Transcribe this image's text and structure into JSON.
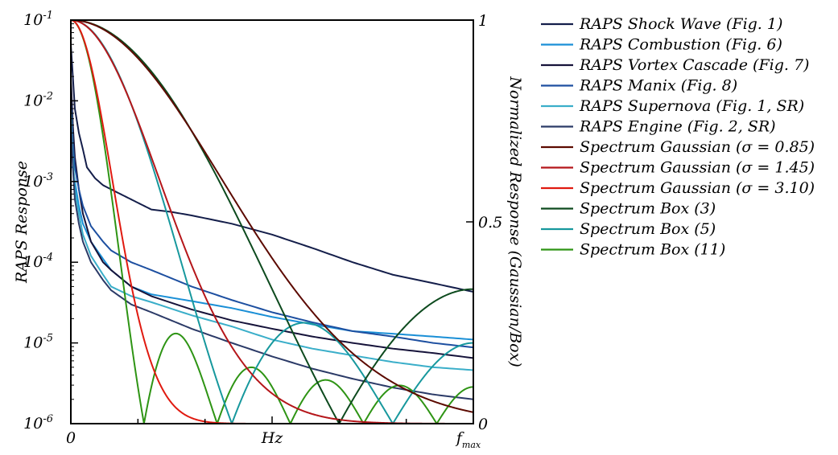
{
  "chart_data": {
    "type": "line",
    "x_axis": {
      "label": "Hz",
      "start_label": "0",
      "end_label": "f",
      "end_label_subscript": "max",
      "range": [
        0,
        1
      ]
    },
    "y_left": {
      "label": "RAPS Response",
      "scale": "log",
      "range": [
        1e-06,
        0.1
      ],
      "ticks": [
        {
          "base": "10",
          "exp": "-1",
          "value": 0.1
        },
        {
          "base": "10",
          "exp": "-2",
          "value": 0.01
        },
        {
          "base": "10",
          "exp": "-3",
          "value": 0.001
        },
        {
          "base": "10",
          "exp": "-4",
          "value": 0.0001
        },
        {
          "base": "10",
          "exp": "-5",
          "value": 1e-05
        },
        {
          "base": "10",
          "exp": "-6",
          "value": 1e-06
        }
      ]
    },
    "y_right": {
      "label": "Normalized Response (Gaussian/Box)",
      "scale": "linear",
      "range": [
        0,
        1
      ],
      "ticks": [
        {
          "label": "1",
          "value": 1
        },
        {
          "label": "0.5",
          "value": 0.5
        },
        {
          "label": "0",
          "value": 0
        }
      ]
    },
    "legend_position": "outside-right",
    "series": [
      {
        "name": "RAPS Shock Wave (Fig. 1)",
        "axis": "left",
        "color": "#141e4a",
        "x": [
          0,
          0.005,
          0.01,
          0.02,
          0.03,
          0.04,
          0.06,
          0.08,
          0.1,
          0.15,
          0.2,
          0.25,
          0.3,
          0.4,
          0.5,
          0.6,
          0.7,
          0.8,
          0.9,
          1.0
        ],
        "y": [
          0.05,
          0.02,
          0.008,
          0.004,
          0.0025,
          0.0015,
          0.0011,
          0.0009,
          0.0008,
          0.0006,
          0.00045,
          0.00042,
          0.00038,
          0.0003,
          0.00022,
          0.00015,
          0.0001,
          7e-05,
          5.5e-05,
          4.3e-05
        ]
      },
      {
        "name": "RAPS Combustion (Fig. 6)",
        "axis": "left",
        "color": "#1a8fd6",
        "x": [
          0,
          0.005,
          0.01,
          0.02,
          0.03,
          0.05,
          0.08,
          0.1,
          0.15,
          0.2,
          0.3,
          0.4,
          0.5,
          0.6,
          0.7,
          0.8,
          0.9,
          1.0
        ],
        "y": [
          0.0015,
          0.0015,
          0.001,
          0.0005,
          0.0003,
          0.00018,
          0.00011,
          8e-05,
          5e-05,
          4e-05,
          3.3e-05,
          2.7e-05,
          2.1e-05,
          1.7e-05,
          1.4e-05,
          1.3e-05,
          1.2e-05,
          1.1e-05
        ]
      },
      {
        "name": "RAPS Vortex Cascade (Fig. 7)",
        "axis": "left",
        "color": "#16133a",
        "x": [
          0,
          0.005,
          0.01,
          0.02,
          0.03,
          0.05,
          0.08,
          0.1,
          0.15,
          0.2,
          0.3,
          0.4,
          0.5,
          0.6,
          0.7,
          0.8,
          0.9,
          1.0
        ],
        "y": [
          0.02,
          0.005,
          0.002,
          0.0008,
          0.0004,
          0.00018,
          0.0001,
          8e-05,
          5e-05,
          3.8e-05,
          2.6e-05,
          1.9e-05,
          1.5e-05,
          1.2e-05,
          1e-05,
          8.5e-06,
          7.5e-06,
          6.5e-06
        ]
      },
      {
        "name": "RAPS Manix (Fig. 8)",
        "axis": "left",
        "color": "#1d4fa0",
        "x": [
          0,
          0.005,
          0.01,
          0.02,
          0.03,
          0.05,
          0.08,
          0.1,
          0.15,
          0.2,
          0.3,
          0.4,
          0.5,
          0.6,
          0.7,
          0.8,
          0.9,
          1.0
        ],
        "y": [
          0.01,
          0.003,
          0.0015,
          0.0008,
          0.0005,
          0.00028,
          0.00018,
          0.00014,
          0.0001,
          8e-05,
          5e-05,
          3.4e-05,
          2.4e-05,
          1.8e-05,
          1.4e-05,
          1.2e-05,
          1e-05,
          8.8e-06
        ]
      },
      {
        "name": "RAPS Supernova (Fig. 1, SR)",
        "axis": "left",
        "color": "#3aaec9",
        "x": [
          0,
          0.005,
          0.01,
          0.02,
          0.03,
          0.05,
          0.08,
          0.1,
          0.15,
          0.2,
          0.3,
          0.4,
          0.5,
          0.6,
          0.7,
          0.8,
          0.9,
          1.0
        ],
        "y": [
          0.008,
          0.002,
          0.0008,
          0.0004,
          0.00022,
          0.00012,
          7e-05,
          5e-05,
          3.8e-05,
          3.2e-05,
          2.2e-05,
          1.6e-05,
          1.1e-05,
          8.5e-06,
          7e-06,
          5.8e-06,
          5e-06,
          4.6e-06
        ]
      },
      {
        "name": "RAPS Engine (Fig. 2, SR)",
        "axis": "left",
        "color": "#2b3a67",
        "x": [
          0,
          0.005,
          0.01,
          0.02,
          0.03,
          0.05,
          0.08,
          0.1,
          0.15,
          0.2,
          0.3,
          0.4,
          0.5,
          0.6,
          0.7,
          0.8,
          0.9,
          1.0
        ],
        "y": [
          0.006,
          0.0015,
          0.0006,
          0.0003,
          0.00018,
          0.0001,
          6e-05,
          4.5e-05,
          3e-05,
          2.4e-05,
          1.5e-05,
          1e-05,
          6.8e-06,
          4.8e-06,
          3.6e-06,
          2.8e-06,
          2.3e-06,
          2e-06
        ]
      },
      {
        "name": "Spectrum Gaussian (σ = 0.85)",
        "axis": "right",
        "color": "#5c0a00",
        "kind": "gauss",
        "sigma": 0.85
      },
      {
        "name": "Spectrum Gaussian (σ = 1.45)",
        "axis": "right",
        "color": "#b5161a",
        "kind": "gauss",
        "sigma": 1.45
      },
      {
        "name": "Spectrum Gaussian (σ = 3.10)",
        "axis": "right",
        "color": "#e01a10",
        "kind": "gauss",
        "sigma": 3.1
      },
      {
        "name": "Spectrum Box (3)",
        "axis": "right",
        "color": "#0d4a1e",
        "kind": "box",
        "n": 3
      },
      {
        "name": "Spectrum Box (5)",
        "axis": "right",
        "color": "#17989d",
        "kind": "box",
        "n": 5
      },
      {
        "name": "Spectrum Box (11)",
        "axis": "right",
        "color": "#2e9414",
        "kind": "box",
        "n": 11
      }
    ]
  }
}
